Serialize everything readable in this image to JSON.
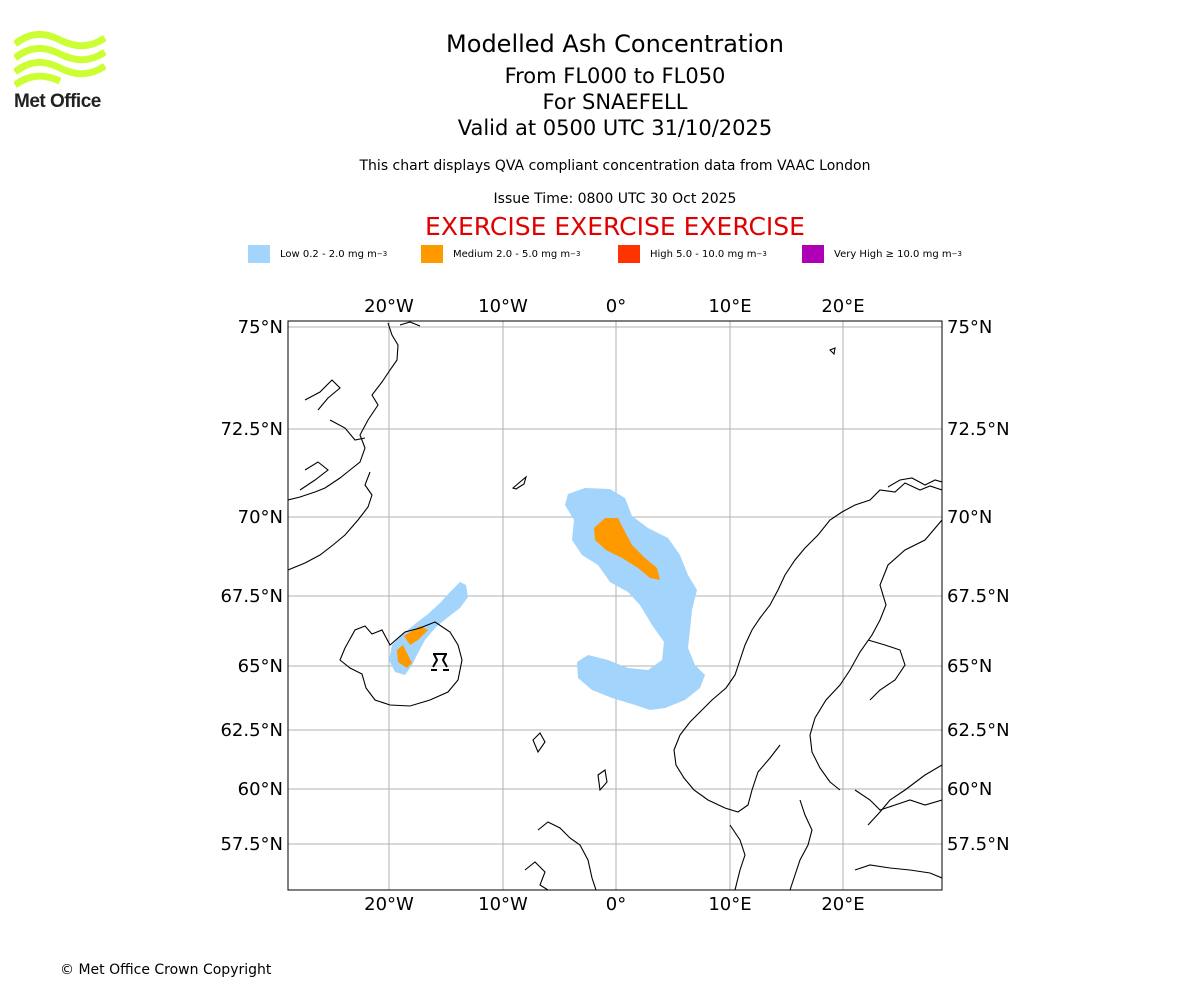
{
  "header": {
    "title": "Modelled Ash Concentration",
    "levels": "From FL000 to FL050",
    "volcano": "For SNAEFELL",
    "valid": "Valid at 0500 UTC 31/10/2025",
    "note": "This chart displays QVA compliant concentration data from VAAC London",
    "issue_time": "Issue Time: 0800 UTC 30 Oct 2025",
    "exercise": "EXERCISE EXERCISE EXERCISE"
  },
  "logo": {
    "text": "Met Office",
    "color": "#ccff33"
  },
  "legend": [
    {
      "label": "Low 0.2 - 2.0 mg m",
      "color": "#a3d4fc"
    },
    {
      "label": "Medium 2.0 - 5.0 mg m",
      "color": "#ff9900"
    },
    {
      "label": "High 5.0 - 10.0 mg m",
      "color": "#ff3300"
    },
    {
      "label": "Very High ≥ 10.0 mg m",
      "color": "#b000b5"
    }
  ],
  "legend_unit_exp": "−3",
  "map": {
    "lon_ticks": [
      "20°W",
      "10°W",
      "0°",
      "10°E",
      "20°E"
    ],
    "lat_ticks": [
      "75°N",
      "72.5°N",
      "70°N",
      "67.5°N",
      "65°N",
      "62.5°N",
      "60°N",
      "57.5°N"
    ],
    "volcano_marker": "volcano-icon"
  },
  "footer": {
    "copyright": "© Met Office Crown Copyright"
  }
}
